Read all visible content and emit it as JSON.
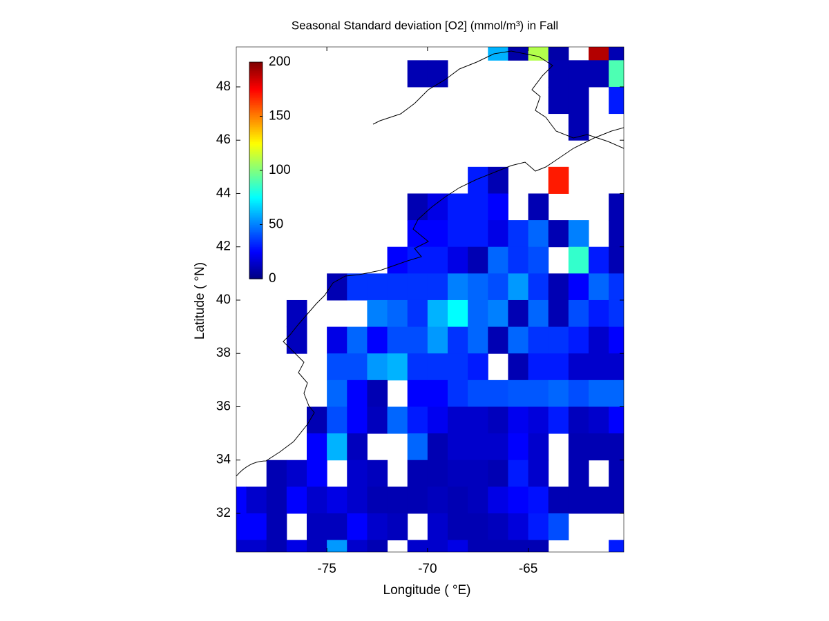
{
  "chart_data": {
    "type": "heatmap",
    "title": "Seasonal Standard deviation [O2] (mmol/m³) in Fall",
    "xlabel": "Longitude ( °E)",
    "ylabel": "Latitude ( °N)",
    "colormap": "jet",
    "clim": [
      0,
      200
    ],
    "cticks": [
      0,
      50,
      100,
      150,
      200
    ],
    "xlim": [
      -79.5,
      -60.25
    ],
    "ylim": [
      30.55,
      49.5
    ],
    "xticks": [
      -75,
      -70,
      -65
    ],
    "yticks": [
      32,
      34,
      36,
      38,
      40,
      42,
      44,
      46,
      48
    ],
    "x": [
      -80,
      -79,
      -78,
      -77,
      -76,
      -75,
      -74,
      -73,
      -72,
      -71,
      -70,
      -69,
      -68,
      -67,
      -66,
      -65,
      -64,
      -63,
      -62,
      -61
    ],
    "y": [
      49,
      48,
      47,
      46,
      45,
      44,
      43,
      42,
      41,
      40,
      39,
      38,
      37,
      36,
      35,
      34,
      33,
      32,
      31,
      30
    ],
    "values": [
      [
        null,
        null,
        null,
        null,
        null,
        null,
        null,
        null,
        null,
        null,
        null,
        null,
        null,
        60,
        8,
        110,
        8,
        null,
        190,
        10
      ],
      [
        null,
        null,
        null,
        null,
        null,
        null,
        null,
        null,
        null,
        10,
        10,
        null,
        null,
        null,
        null,
        null,
        10,
        10,
        10,
        90
      ],
      [
        null,
        null,
        null,
        null,
        null,
        null,
        null,
        null,
        null,
        null,
        null,
        null,
        null,
        null,
        null,
        null,
        10,
        10,
        null,
        30
      ],
      [
        null,
        null,
        null,
        null,
        null,
        null,
        null,
        null,
        null,
        null,
        null,
        null,
        null,
        null,
        null,
        null,
        null,
        10,
        null,
        null
      ],
      [
        null,
        null,
        null,
        null,
        null,
        null,
        null,
        null,
        null,
        null,
        null,
        null,
        null,
        null,
        null,
        null,
        null,
        null,
        null,
        null
      ],
      [
        null,
        null,
        null,
        null,
        null,
        null,
        null,
        null,
        null,
        null,
        null,
        null,
        30,
        10,
        null,
        null,
        170,
        null,
        null,
        null
      ],
      [
        null,
        null,
        null,
        null,
        null,
        null,
        null,
        null,
        null,
        10,
        20,
        30,
        30,
        25,
        null,
        10,
        null,
        null,
        null,
        10
      ],
      [
        null,
        null,
        null,
        null,
        null,
        null,
        null,
        null,
        null,
        25,
        25,
        30,
        30,
        20,
        35,
        45,
        10,
        50,
        null,
        10
      ],
      [
        null,
        null,
        null,
        null,
        null,
        null,
        null,
        null,
        25,
        30,
        30,
        20,
        10,
        45,
        35,
        40,
        null,
        85,
        30,
        10
      ],
      [
        null,
        null,
        null,
        null,
        null,
        10,
        35,
        35,
        35,
        35,
        35,
        50,
        45,
        40,
        55,
        35,
        10,
        25,
        45,
        35
      ],
      [
        null,
        null,
        null,
        12,
        null,
        null,
        null,
        50,
        45,
        35,
        60,
        75,
        45,
        50,
        10,
        45,
        10,
        40,
        30,
        35
      ],
      [
        null,
        null,
        null,
        12,
        null,
        20,
        45,
        25,
        40,
        40,
        55,
        35,
        45,
        10,
        45,
        35,
        35,
        30,
        15,
        25
      ],
      [
        null,
        null,
        null,
        null,
        null,
        40,
        40,
        55,
        60,
        35,
        35,
        35,
        30,
        null,
        10,
        30,
        30,
        15,
        15,
        15
      ],
      [
        null,
        null,
        null,
        null,
        null,
        45,
        25,
        10,
        null,
        25,
        25,
        35,
        40,
        40,
        42,
        42,
        45,
        40,
        45,
        45
      ],
      [
        null,
        null,
        null,
        null,
        10,
        40,
        25,
        12,
        45,
        30,
        22,
        15,
        15,
        12,
        22,
        18,
        30,
        12,
        15,
        25
      ],
      [
        null,
        null,
        null,
        null,
        25,
        60,
        12,
        null,
        null,
        45,
        10,
        15,
        15,
        15,
        25,
        15,
        null,
        10,
        10,
        10
      ],
      [
        null,
        null,
        10,
        15,
        25,
        null,
        15,
        12,
        null,
        10,
        10,
        12,
        12,
        10,
        30,
        15,
        null,
        10,
        null,
        10
      ],
      [
        25,
        15,
        10,
        25,
        15,
        20,
        15,
        10,
        10,
        10,
        12,
        10,
        12,
        20,
        25,
        28,
        10,
        10,
        10,
        10
      ],
      [
        25,
        25,
        10,
        null,
        12,
        12,
        25,
        15,
        12,
        null,
        15,
        10,
        10,
        12,
        18,
        30,
        40,
        null,
        null,
        null
      ],
      [
        15,
        15,
        10,
        20,
        12,
        55,
        15,
        10,
        null,
        15,
        15,
        20,
        10,
        10,
        10,
        10,
        null,
        null,
        null,
        30
      ]
    ]
  }
}
